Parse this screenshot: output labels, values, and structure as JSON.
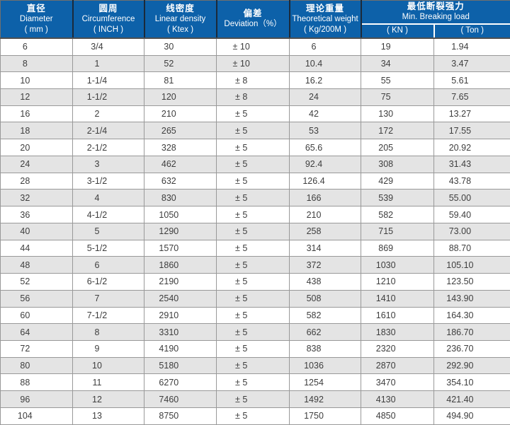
{
  "colors": {
    "header_blue": "#0d61a9",
    "header_sep": "#1b2a3a",
    "header_bottom": "#4f4f4f",
    "grid": "#999999",
    "row_white": "#ffffff",
    "row_gray": "#e4e4e4",
    "body_text": "#3e3e3e",
    "header_text": "#ffffff"
  },
  "chart_data": {
    "type": "table",
    "title": "",
    "columns": [
      {
        "name": "diameter",
        "lines": [
          "直径",
          "Diameter",
          "( mm )"
        ]
      },
      {
        "name": "circumference",
        "lines": [
          "圆周",
          "Circumference",
          "( INCH )"
        ]
      },
      {
        "name": "linear-density",
        "lines": [
          "线密度",
          "Linear density",
          "( Ktex )"
        ]
      },
      {
        "name": "deviation",
        "lines": [
          "偏差",
          "Deviation（%）",
          ""
        ]
      },
      {
        "name": "theoretical-weight",
        "lines": [
          "理论重量",
          "Theoretical weight",
          "( Kg/200M )"
        ]
      }
    ],
    "group": {
      "zh": "最低断裂强力",
      "en": "Min. Breaking load",
      "subs": [
        "( KN )",
        "( Ton )"
      ]
    },
    "rows": [
      [
        "6",
        "3/4",
        "30",
        "± 10",
        "6",
        "19",
        "1.94"
      ],
      [
        "8",
        "1",
        "52",
        "± 10",
        "10.4",
        "34",
        "3.47"
      ],
      [
        "10",
        "1-1/4",
        "81",
        "± 8",
        "16.2",
        "55",
        "5.61"
      ],
      [
        "12",
        "1-1/2",
        "120",
        "± 8",
        "24",
        "75",
        "7.65"
      ],
      [
        "16",
        "2",
        "210",
        "± 5",
        "42",
        "130",
        "13.27"
      ],
      [
        "18",
        "2-1/4",
        "265",
        "± 5",
        "53",
        "172",
        "17.55"
      ],
      [
        "20",
        "2-1/2",
        "328",
        "± 5",
        "65.6",
        "205",
        "20.92"
      ],
      [
        "24",
        "3",
        "462",
        "± 5",
        "92.4",
        "308",
        "31.43"
      ],
      [
        "28",
        "3-1/2",
        "632",
        "± 5",
        "126.4",
        "429",
        "43.78"
      ],
      [
        "32",
        "4",
        "830",
        "± 5",
        "166",
        "539",
        "55.00"
      ],
      [
        "36",
        "4-1/2",
        "1050",
        "± 5",
        "210",
        "582",
        "59.40"
      ],
      [
        "40",
        "5",
        "1290",
        "± 5",
        "258",
        "715",
        "73.00"
      ],
      [
        "44",
        "5-1/2",
        "1570",
        "± 5",
        "314",
        "869",
        "88.70"
      ],
      [
        "48",
        "6",
        "1860",
        "± 5",
        "372",
        "1030",
        "105.10"
      ],
      [
        "52",
        "6-1/2",
        "2190",
        "± 5",
        "438",
        "1210",
        "123.50"
      ],
      [
        "56",
        "7",
        "2540",
        "± 5",
        "508",
        "1410",
        "143.90"
      ],
      [
        "60",
        "7-1/2",
        "2910",
        "± 5",
        "582",
        "1610",
        "164.30"
      ],
      [
        "64",
        "8",
        "3310",
        "± 5",
        "662",
        "1830",
        "186.70"
      ],
      [
        "72",
        "9",
        "4190",
        "± 5",
        "838",
        "2320",
        "236.70"
      ],
      [
        "80",
        "10",
        "5180",
        "± 5",
        "1036",
        "2870",
        "292.90"
      ],
      [
        "88",
        "11",
        "6270",
        "± 5",
        "1254",
        "3470",
        "354.10"
      ],
      [
        "96",
        "12",
        "7460",
        "± 5",
        "1492",
        "4130",
        "421.40"
      ],
      [
        "104",
        "13",
        "8750",
        "± 5",
        "1750",
        "4850",
        "494.90"
      ]
    ]
  }
}
